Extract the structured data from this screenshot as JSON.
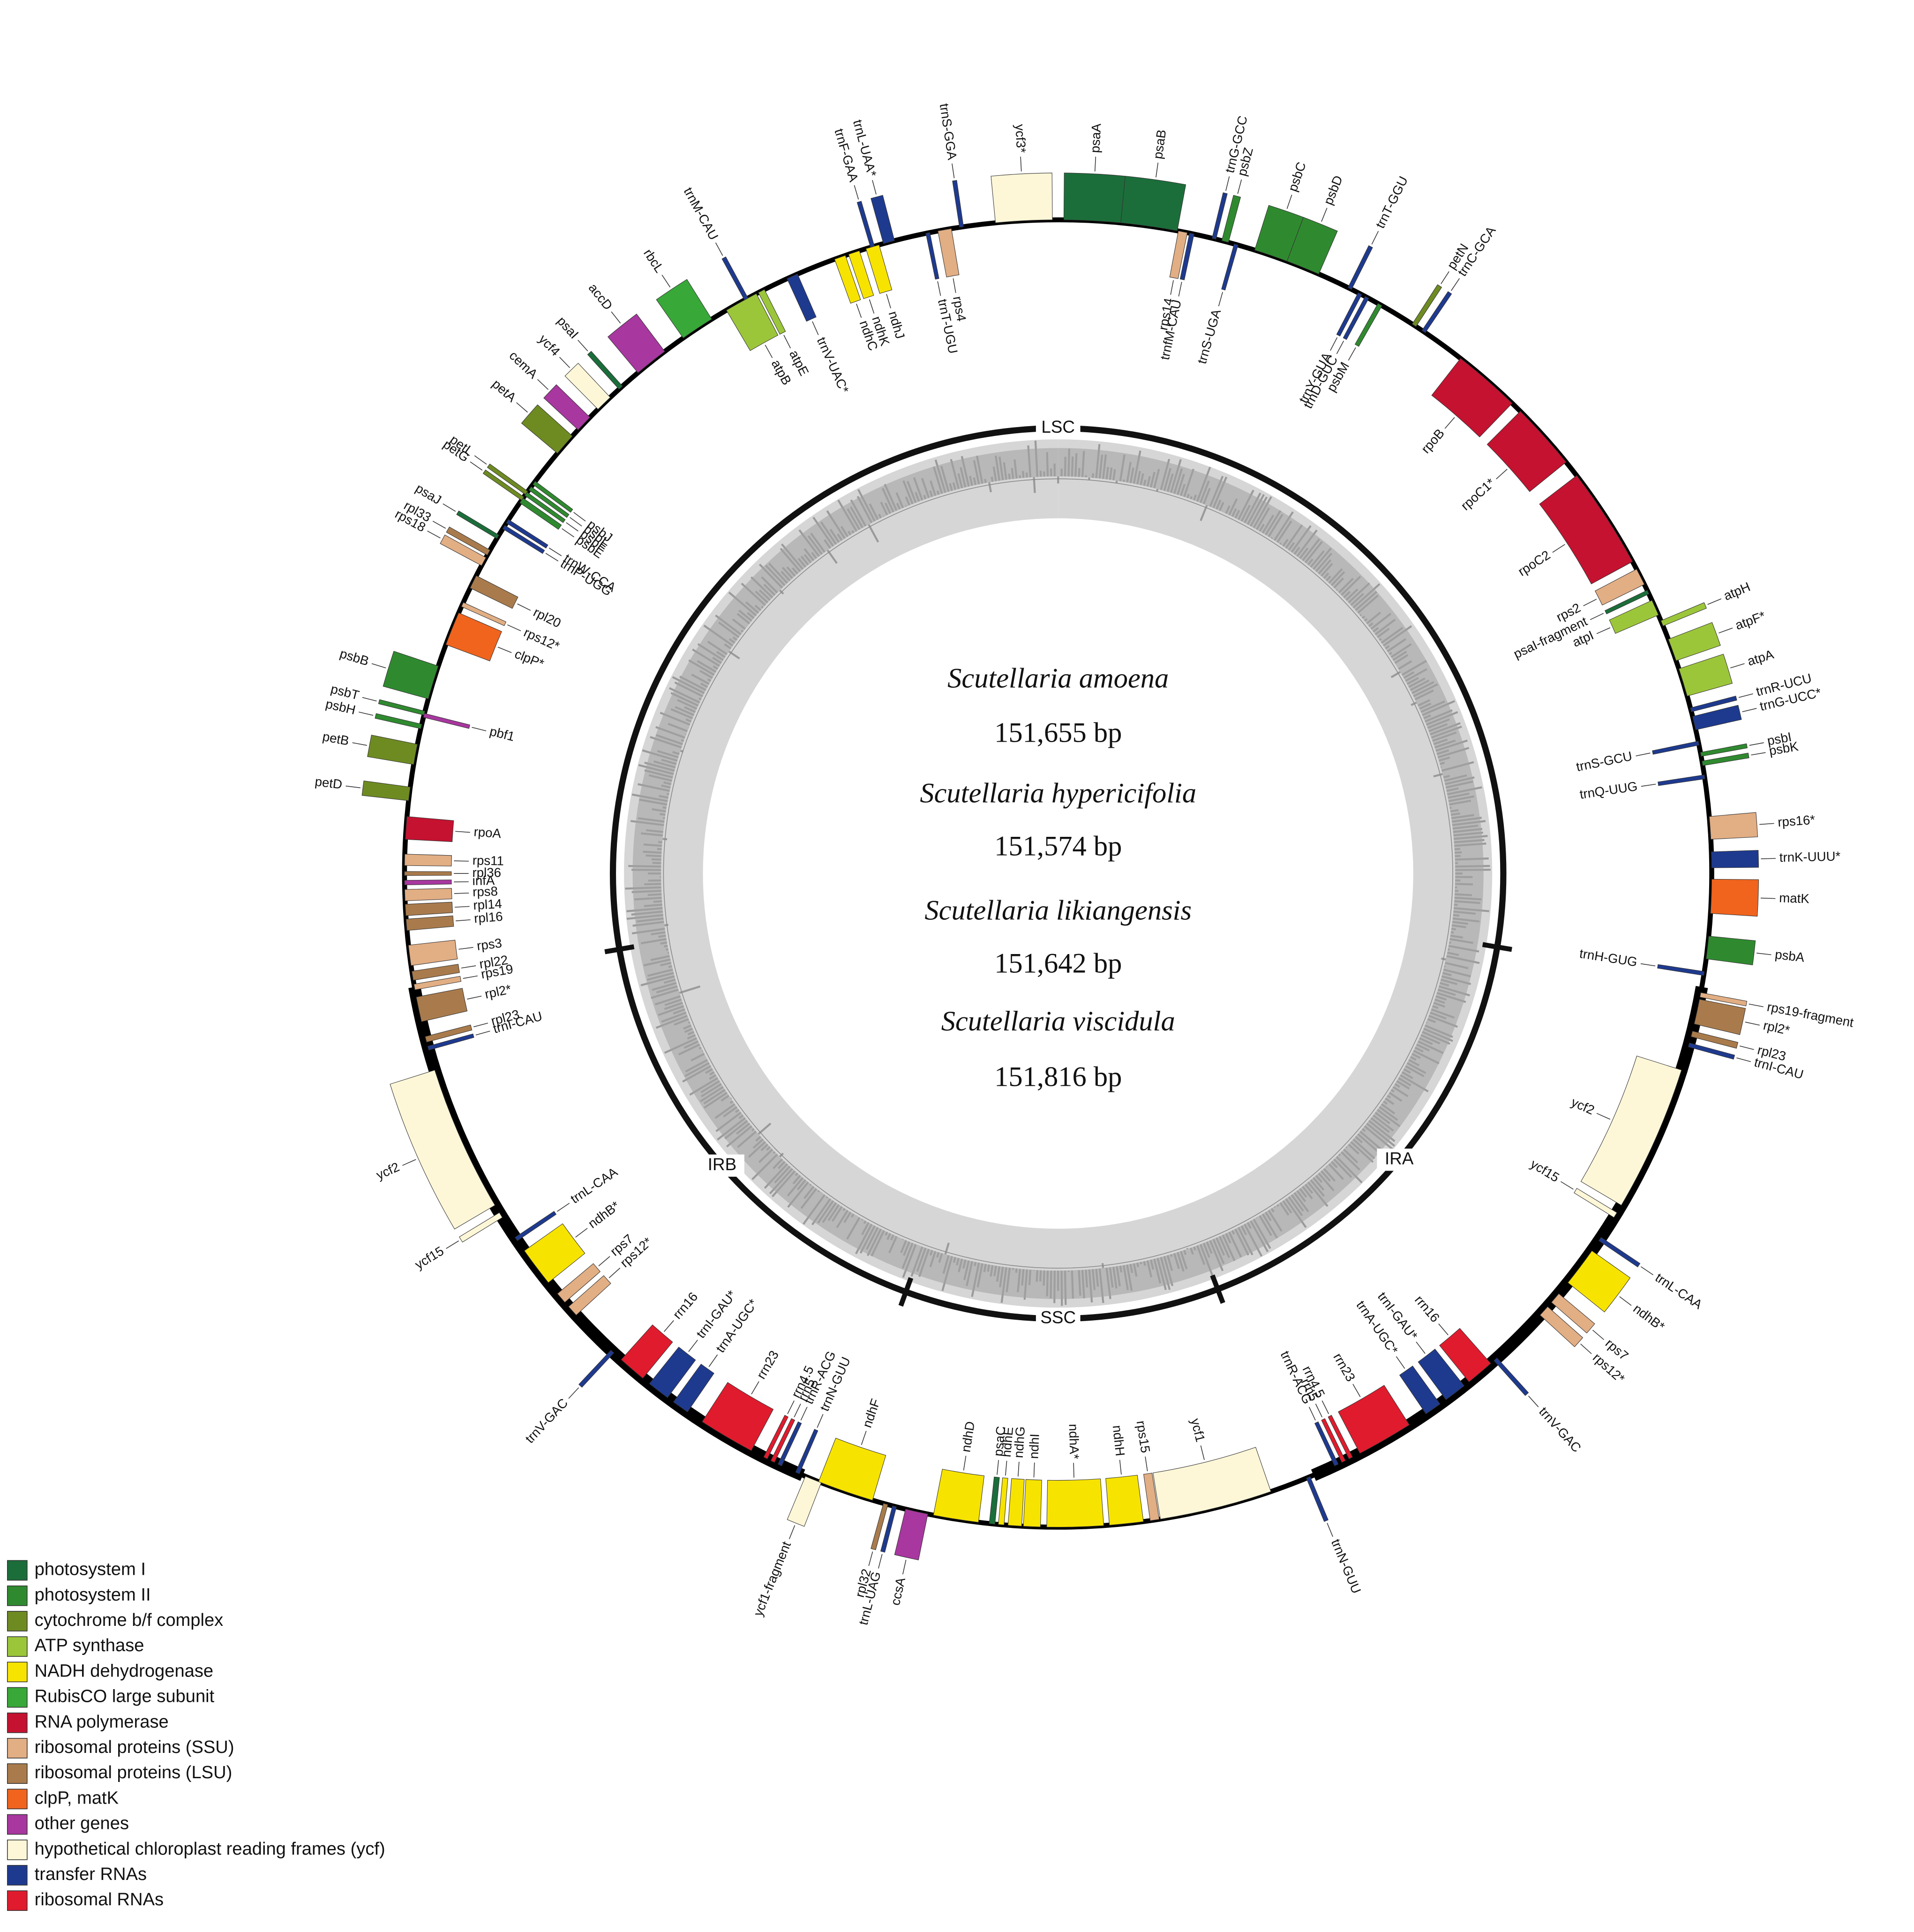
{
  "genomes": [
    {
      "species": "Scutellaria amoena",
      "length": "151,655 bp"
    },
    {
      "species": "Scutellaria hypericifolia",
      "length": "151,574 bp"
    },
    {
      "species": "Scutellaria likiangensis",
      "length": "151,642 bp"
    },
    {
      "species": "Scutellaria viscidula",
      "length": "151,816 bp"
    }
  ],
  "regions": [
    "LSC",
    "IRA",
    "SSC",
    "IRB"
  ],
  "genes": [
    {
      "name": "ycf3*",
      "color": "#fdf7d8"
    },
    {
      "name": "psaA",
      "color": "#1b6e3a"
    },
    {
      "name": "psaB",
      "color": "#1b6e3a"
    },
    {
      "name": "rps14",
      "color": "#e2ae84"
    },
    {
      "name": "trnfM-CAU",
      "color": "#1e3a8f"
    },
    {
      "name": "trnG-GCC",
      "color": "#1e3a8f"
    },
    {
      "name": "psbZ",
      "color": "#2f8a2f"
    },
    {
      "name": "trnS-UGA",
      "color": "#1e3a8f"
    },
    {
      "name": "psbC",
      "color": "#2f8a2f"
    },
    {
      "name": "psbD",
      "color": "#2f8a2f"
    },
    {
      "name": "trnT-GGU",
      "color": "#1e3a8f"
    },
    {
      "name": "trnY-GUA",
      "color": "#1e3a8f"
    },
    {
      "name": "trnD-GUC",
      "color": "#1e3a8f"
    },
    {
      "name": "psbM",
      "color": "#2f8a2f"
    },
    {
      "name": "petN",
      "color": "#6e8b22"
    },
    {
      "name": "trnC-GCA",
      "color": "#1e3a8f"
    },
    {
      "name": "rpoB",
      "color": "#c41230"
    },
    {
      "name": "rpoC1*",
      "color": "#c41230"
    },
    {
      "name": "rpoC2",
      "color": "#c41230"
    },
    {
      "name": "rps2",
      "color": "#e2ae84"
    },
    {
      "name": "psaI-fragment",
      "color": "#1b6e3a"
    },
    {
      "name": "atpI",
      "color": "#9cc63a"
    },
    {
      "name": "atpH",
      "color": "#9cc63a"
    },
    {
      "name": "atpF*",
      "color": "#9cc63a"
    },
    {
      "name": "atpA",
      "color": "#9cc63a"
    },
    {
      "name": "trnR-UCU",
      "color": "#1e3a8f"
    },
    {
      "name": "trnG-UCC*",
      "color": "#1e3a8f"
    },
    {
      "name": "trnS-GCU",
      "color": "#1e3a8f"
    },
    {
      "name": "psbI",
      "color": "#2f8a2f"
    },
    {
      "name": "psbK",
      "color": "#2f8a2f"
    },
    {
      "name": "trnQ-UUG",
      "color": "#1e3a8f"
    },
    {
      "name": "rps16*",
      "color": "#e2ae84"
    },
    {
      "name": "trnK-UUU*",
      "color": "#1e3a8f"
    },
    {
      "name": "matK",
      "color": "#f0641e"
    },
    {
      "name": "psbA",
      "color": "#2f8a2f"
    },
    {
      "name": "trnH-GUG",
      "color": "#1e3a8f"
    },
    {
      "name": "rps19-fragment",
      "color": "#e2ae84"
    },
    {
      "name": "rpl2*",
      "color": "#a97b4c"
    },
    {
      "name": "rpl23",
      "color": "#a97b4c"
    },
    {
      "name": "trnI-CAU",
      "color": "#1e3a8f"
    },
    {
      "name": "ycf2",
      "color": "#fdf7d8"
    },
    {
      "name": "ycf15",
      "color": "#fdf7d8"
    },
    {
      "name": "trnL-CAA",
      "color": "#1e3a8f"
    },
    {
      "name": "ndhB*",
      "color": "#f7e300"
    },
    {
      "name": "rps7",
      "color": "#e2ae84"
    },
    {
      "name": "rps12*",
      "color": "#e2ae84"
    },
    {
      "name": "trnV-GAC",
      "color": "#1e3a8f"
    },
    {
      "name": "rrn16",
      "color": "#e01b2d"
    },
    {
      "name": "trnI-GAU*",
      "color": "#1e3a8f"
    },
    {
      "name": "trnA-UGC*",
      "color": "#1e3a8f"
    },
    {
      "name": "rrn23",
      "color": "#e01b2d"
    },
    {
      "name": "rrn4.5",
      "color": "#e01b2d"
    },
    {
      "name": "rrn5",
      "color": "#e01b2d"
    },
    {
      "name": "trnR-ACG",
      "color": "#1e3a8f"
    },
    {
      "name": "trnN-GUU",
      "color": "#1e3a8f"
    },
    {
      "name": "ycf1",
      "color": "#fdf7d8"
    },
    {
      "name": "rps15",
      "color": "#e2ae84"
    },
    {
      "name": "ndhH",
      "color": "#f7e300"
    },
    {
      "name": "ndhA*",
      "color": "#f7e300"
    },
    {
      "name": "ndhI",
      "color": "#f7e300"
    },
    {
      "name": "ndhG",
      "color": "#f7e300"
    },
    {
      "name": "ndhE",
      "color": "#f7e300"
    },
    {
      "name": "psaC",
      "color": "#1b6e3a"
    },
    {
      "name": "ndhD",
      "color": "#f7e300"
    },
    {
      "name": "ccsA",
      "color": "#a8379f"
    },
    {
      "name": "trnL-UAG",
      "color": "#1e3a8f"
    },
    {
      "name": "rpl32",
      "color": "#a97b4c"
    },
    {
      "name": "ndhF",
      "color": "#f7e300"
    },
    {
      "name": "ycf1-fragment",
      "color": "#fdf7d8"
    },
    {
      "name": "trnN-GUU",
      "color": "#1e3a8f"
    },
    {
      "name": "trnR-ACG",
      "color": "#1e3a8f"
    },
    {
      "name": "rrn5",
      "color": "#e01b2d"
    },
    {
      "name": "rrn4.5",
      "color": "#e01b2d"
    },
    {
      "name": "rrn23",
      "color": "#e01b2d"
    },
    {
      "name": "trnA-UGC*",
      "color": "#1e3a8f"
    },
    {
      "name": "trnI-GAU*",
      "color": "#1e3a8f"
    },
    {
      "name": "rrn16",
      "color": "#e01b2d"
    },
    {
      "name": "trnV-GAC",
      "color": "#1e3a8f"
    },
    {
      "name": "rps12*",
      "color": "#e2ae84"
    },
    {
      "name": "rps7",
      "color": "#e2ae84"
    },
    {
      "name": "ndhB*",
      "color": "#f7e300"
    },
    {
      "name": "trnL-CAA",
      "color": "#1e3a8f"
    },
    {
      "name": "ycf15",
      "color": "#fdf7d8"
    },
    {
      "name": "ycf2",
      "color": "#fdf7d8"
    },
    {
      "name": "trnI-CAU",
      "color": "#1e3a8f"
    },
    {
      "name": "rpl23",
      "color": "#a97b4c"
    },
    {
      "name": "rpl2*",
      "color": "#a97b4c"
    },
    {
      "name": "rps19",
      "color": "#e2ae84"
    },
    {
      "name": "rpl22",
      "color": "#a97b4c"
    },
    {
      "name": "rps3",
      "color": "#e2ae84"
    },
    {
      "name": "rpl16",
      "color": "#a97b4c"
    },
    {
      "name": "rpl14",
      "color": "#a97b4c"
    },
    {
      "name": "rps8",
      "color": "#e2ae84"
    },
    {
      "name": "infA",
      "color": "#a8379f"
    },
    {
      "name": "rpl36",
      "color": "#a97b4c"
    },
    {
      "name": "rps11",
      "color": "#e2ae84"
    },
    {
      "name": "rpoA",
      "color": "#c41230"
    },
    {
      "name": "petD",
      "color": "#6e8b22"
    },
    {
      "name": "petB",
      "color": "#6e8b22"
    },
    {
      "name": "pbf1",
      "color": "#a8379f"
    },
    {
      "name": "psbH",
      "color": "#2f8a2f"
    },
    {
      "name": "psbT",
      "color": "#2f8a2f"
    },
    {
      "name": "psbB",
      "color": "#2f8a2f"
    },
    {
      "name": "clpP*",
      "color": "#f0641e"
    },
    {
      "name": "rps12*",
      "color": "#e2ae84"
    },
    {
      "name": "rpl20",
      "color": "#a97b4c"
    },
    {
      "name": "rps18",
      "color": "#e2ae84"
    },
    {
      "name": "rpl33",
      "color": "#a97b4c"
    },
    {
      "name": "psaJ",
      "color": "#1b6e3a"
    },
    {
      "name": "trnP-UGG",
      "color": "#1e3a8f"
    },
    {
      "name": "trnW-CCA",
      "color": "#1e3a8f"
    },
    {
      "name": "petG",
      "color": "#6e8b22"
    },
    {
      "name": "petL",
      "color": "#6e8b22"
    },
    {
      "name": "psbE",
      "color": "#2f8a2f"
    },
    {
      "name": "psbF",
      "color": "#2f8a2f"
    },
    {
      "name": "psbL",
      "color": "#2f8a2f"
    },
    {
      "name": "psbJ",
      "color": "#2f8a2f"
    },
    {
      "name": "petA",
      "color": "#6e8b22"
    },
    {
      "name": "cemA",
      "color": "#a8379f"
    },
    {
      "name": "ycf4",
      "color": "#fdf7d8"
    },
    {
      "name": "psaI",
      "color": "#1b6e3a"
    },
    {
      "name": "accD",
      "color": "#a8379f"
    },
    {
      "name": "rbcL",
      "color": "#38a838"
    },
    {
      "name": "atpB",
      "color": "#9cc63a"
    },
    {
      "name": "atpE",
      "color": "#9cc63a"
    },
    {
      "name": "trnM-CAU",
      "color": "#1e3a8f"
    },
    {
      "name": "trnV-UAC*",
      "color": "#1e3a8f"
    },
    {
      "name": "ndhC",
      "color": "#f7e300"
    },
    {
      "name": "ndhK",
      "color": "#f7e300"
    },
    {
      "name": "ndhJ",
      "color": "#f7e300"
    },
    {
      "name": "trnF-GAA",
      "color": "#1e3a8f"
    },
    {
      "name": "trnL-UAA*",
      "color": "#1e3a8f"
    },
    {
      "name": "trnT-UGU",
      "color": "#1e3a8f"
    },
    {
      "name": "rps4",
      "color": "#e2ae84"
    },
    {
      "name": "trnS-GGA",
      "color": "#1e3a8f"
    }
  ],
  "legend": [
    {
      "label": "photosystem I",
      "color": "#1b6e3a"
    },
    {
      "label": "photosystem II",
      "color": "#2f8a2f"
    },
    {
      "label": "cytochrome b/f complex",
      "color": "#6e8b22"
    },
    {
      "label": "ATP synthase",
      "color": "#9cc63a"
    },
    {
      "label": "NADH dehydrogenase",
      "color": "#f7e300"
    },
    {
      "label": "RubisCO large subunit",
      "color": "#38a838"
    },
    {
      "label": "RNA polymerase",
      "color": "#c41230"
    },
    {
      "label": "ribosomal proteins (SSU)",
      "color": "#e2ae84"
    },
    {
      "label": "ribosomal proteins (LSU)",
      "color": "#a97b4c"
    },
    {
      "label": "clpP, matK",
      "color": "#f0641e"
    },
    {
      "label": "other genes",
      "color": "#a8379f"
    },
    {
      "label": "hypothetical chloroplast reading frames (ycf)",
      "color": "#fdf7d8"
    },
    {
      "label": "transfer RNAs",
      "color": "#1e3a8f"
    },
    {
      "label": "ribosomal RNAs",
      "color": "#e01b2d"
    }
  ]
}
